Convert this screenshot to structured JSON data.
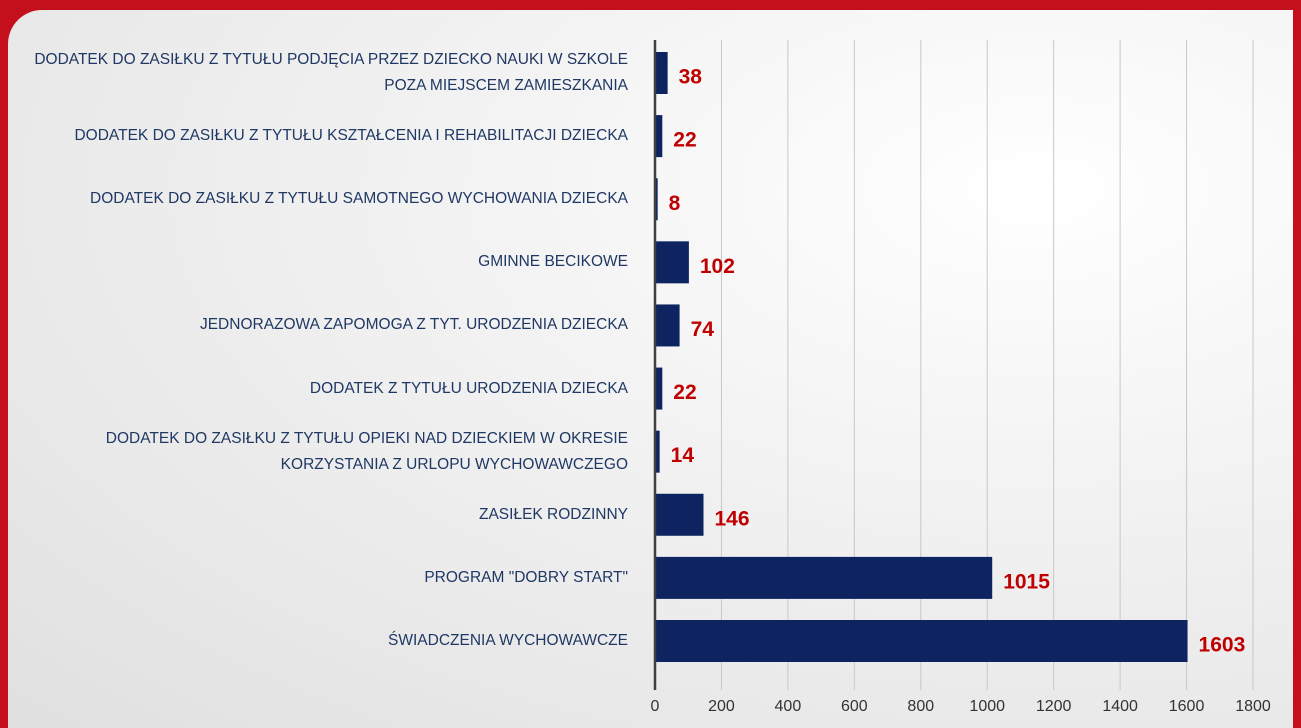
{
  "chart_data": {
    "type": "barh",
    "categories": [
      "DODATEK DO ZASIŁKU Z TYTUŁU PODJĘCIA PRZEZ DZIECKO NAUKI W SZKOLE POZA MIEJSCEM ZAMIESZKANIA",
      "DODATEK DO ZASIŁKU Z TYTUŁU KSZTAŁCENIA I REHABILITACJI DZIECKA",
      "DODATEK DO ZASIŁKU Z TYTUŁU SAMOTNEGO WYCHOWANIA DZIECKA",
      "GMINNE BECIKOWE",
      "JEDNORAZOWA ZAPOMOGA Z TYT. URODZENIA DZIECKA",
      "DODATEK Z TYTUŁU URODZENIA DZIECKA",
      "DODATEK DO ZASIŁKU Z TYTUŁU OPIEKI NAD DZIECKIEM W OKRESIE KORZYSTANIA Z URLOPU WYCHOWAWCZEGO",
      "ZASIŁEK RODZINNY",
      "PROGRAM \"DOBRY START\"",
      "ŚWIADCZENIA WYCHOWAWCZE"
    ],
    "values": [
      38,
      22,
      8,
      102,
      74,
      22,
      14,
      146,
      1015,
      1603
    ],
    "color": "#0d2461",
    "label_color": "#c00000",
    "xlim": [
      0,
      1800
    ],
    "xticks": [
      0,
      200,
      400,
      600,
      800,
      1000,
      1200,
      1400,
      1600,
      1800
    ],
    "grid": true
  }
}
